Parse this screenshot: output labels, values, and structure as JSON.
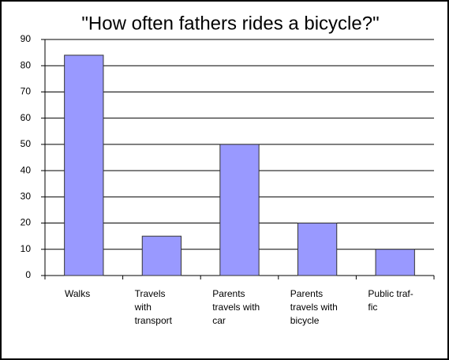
{
  "chart_data": {
    "type": "bar",
    "title": "\"How often fathers rides a bicycle?\"",
    "categories": [
      "Walks",
      "Travels\nwith\ntransport",
      "Parents\ntravels with\ncar",
      "Parents\ntravels with\nbicycle",
      "Public traf-\nfic"
    ],
    "values": [
      84,
      15,
      50,
      20,
      10
    ],
    "color": "#9999ff",
    "ylim": [
      0,
      90
    ],
    "yticks": [
      0,
      10,
      20,
      30,
      40,
      50,
      60,
      70,
      80,
      90
    ],
    "grid": true
  }
}
